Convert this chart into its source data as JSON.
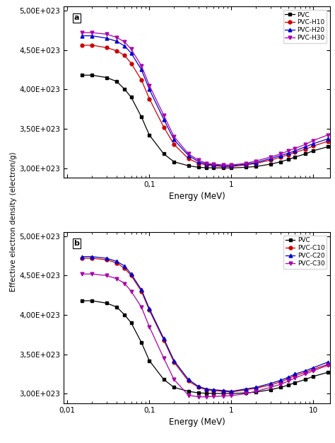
{
  "energy": [
    0.015,
    0.02,
    0.03,
    0.04,
    0.05,
    0.06,
    0.08,
    0.1,
    0.15,
    0.2,
    0.3,
    0.4,
    0.5,
    0.6,
    0.8,
    1.0,
    1.5,
    2.0,
    3.0,
    4.0,
    5.0,
    6.0,
    8.0,
    10.0,
    15.0
  ],
  "panel_a": {
    "PVC": [
      4.18e+23,
      4.18e+23,
      4.15e+23,
      4.1e+23,
      4e+23,
      3.9e+23,
      3.65e+23,
      3.42e+23,
      3.18e+23,
      3.08e+23,
      3.03e+23,
      3.01e+23,
      3.005e+23,
      3.003e+23,
      3.002e+23,
      3.002e+23,
      3.01e+23,
      3.02e+23,
      3.05e+23,
      3.08e+23,
      3.11e+23,
      3.14e+23,
      3.18e+23,
      3.22e+23,
      3.27e+23
    ],
    "PVC-H10": [
      4.56e+23,
      4.56e+23,
      4.53e+23,
      4.49e+23,
      4.43e+23,
      4.33e+23,
      4.12e+23,
      3.88e+23,
      3.52e+23,
      3.3e+23,
      3.12e+23,
      3.06e+23,
      3.04e+23,
      3.03e+23,
      3.02e+23,
      3.02e+23,
      3.04e+23,
      3.06e+23,
      3.1e+23,
      3.14e+23,
      3.17e+23,
      3.2e+23,
      3.24e+23,
      3.28e+23,
      3.34e+23
    ],
    "PVC-H20": [
      4.68e+23,
      4.68e+23,
      4.65e+23,
      4.61e+23,
      4.55e+23,
      4.46e+23,
      4.25e+23,
      4e+23,
      3.62e+23,
      3.36e+23,
      3.16e+23,
      3.08e+23,
      3.05e+23,
      3.04e+23,
      3.03e+23,
      3.03e+23,
      3.05e+23,
      3.07e+23,
      3.12e+23,
      3.16e+23,
      3.19e+23,
      3.22e+23,
      3.27e+23,
      3.31e+23,
      3.37e+23
    ],
    "PVC-H30": [
      4.72e+23,
      4.72e+23,
      4.7e+23,
      4.66e+23,
      4.6e+23,
      4.51e+23,
      4.3e+23,
      4.05e+23,
      3.67e+23,
      3.4e+23,
      3.18e+23,
      3.1e+23,
      3.06e+23,
      3.05e+23,
      3.04e+23,
      3.04e+23,
      3.06e+23,
      3.09e+23,
      3.14e+23,
      3.18e+23,
      3.22e+23,
      3.25e+23,
      3.3e+23,
      3.35e+23,
      3.42e+23
    ]
  },
  "panel_b": {
    "PVC": [
      4.18e+23,
      4.18e+23,
      4.15e+23,
      4.1e+23,
      4e+23,
      3.9e+23,
      3.65e+23,
      3.42e+23,
      3.18e+23,
      3.08e+23,
      3.03e+23,
      3.01e+23,
      3.005e+23,
      3.003e+23,
      3.002e+23,
      3.002e+23,
      3.01e+23,
      3.02e+23,
      3.05e+23,
      3.08e+23,
      3.11e+23,
      3.14e+23,
      3.18e+23,
      3.22e+23,
      3.27e+23
    ],
    "PVC-C10": [
      4.72e+23,
      4.72e+23,
      4.7e+23,
      4.66e+23,
      4.59e+23,
      4.5e+23,
      4.3e+23,
      4.06e+23,
      3.68e+23,
      3.4e+23,
      3.16e+23,
      3.08e+23,
      3.05e+23,
      3.04e+23,
      3.03e+23,
      3.02e+23,
      3.05e+23,
      3.07e+23,
      3.11e+23,
      3.15e+23,
      3.19e+23,
      3.23e+23,
      3.27e+23,
      3.31e+23,
      3.37e+23
    ],
    "PVC-C20": [
      4.74e+23,
      4.74e+23,
      4.72e+23,
      4.68e+23,
      4.62e+23,
      4.52e+23,
      4.32e+23,
      4.08e+23,
      3.7e+23,
      3.42e+23,
      3.18e+23,
      3.09e+23,
      3.06e+23,
      3.05e+23,
      3.04e+23,
      3.03e+23,
      3.06e+23,
      3.08e+23,
      3.13e+23,
      3.17e+23,
      3.21e+23,
      3.25e+23,
      3.29e+23,
      3.33e+23,
      3.4e+23
    ],
    "PVC-C30": [
      4.52e+23,
      4.52e+23,
      4.5e+23,
      4.46e+23,
      4.4e+23,
      4.3e+23,
      4.1e+23,
      3.85e+23,
      3.45e+23,
      3.18e+23,
      2.98e+23,
      2.96e+23,
      2.96e+23,
      2.965e+23,
      2.97e+23,
      2.975e+23,
      3e+23,
      3.03e+23,
      3.08e+23,
      3.12e+23,
      3.16e+23,
      3.2e+23,
      3.25e+23,
      3.29e+23,
      3.36e+23
    ]
  },
  "colors_a": {
    "PVC": "#000000",
    "PVC-H10": "#cc0000",
    "PVC-H20": "#0000cc",
    "PVC-H30": "#aa00aa"
  },
  "colors_b": {
    "PVC": "#000000",
    "PVC-C10": "#cc0000",
    "PVC-C20": "#0000cc",
    "PVC-C30": "#aa00aa"
  },
  "markers_a": {
    "PVC": "s",
    "PVC-H10": "o",
    "PVC-H20": "^",
    "PVC-H30": "v"
  },
  "markers_b": {
    "PVC": "s",
    "PVC-C10": "o",
    "PVC-C20": "^",
    "PVC-C30": "v"
  },
  "ylabel": "Effective electron density (electron/g)",
  "xlabel": "Energy (MeV)",
  "ylim": [
    2.88e+23,
    5.05e+23
  ],
  "yticks": [
    3e+23,
    3.5e+23,
    4e+23,
    4.5e+23,
    5e+23
  ],
  "xticks": [
    0.01,
    0.1,
    1.0,
    10.0
  ],
  "xtick_labels_a": [
    "",
    "0,1",
    "1",
    ""
  ],
  "xtick_labels_b": [
    "0,01",
    "0,1",
    "1",
    "10"
  ],
  "panel_a_label": "a",
  "panel_b_label": "b"
}
